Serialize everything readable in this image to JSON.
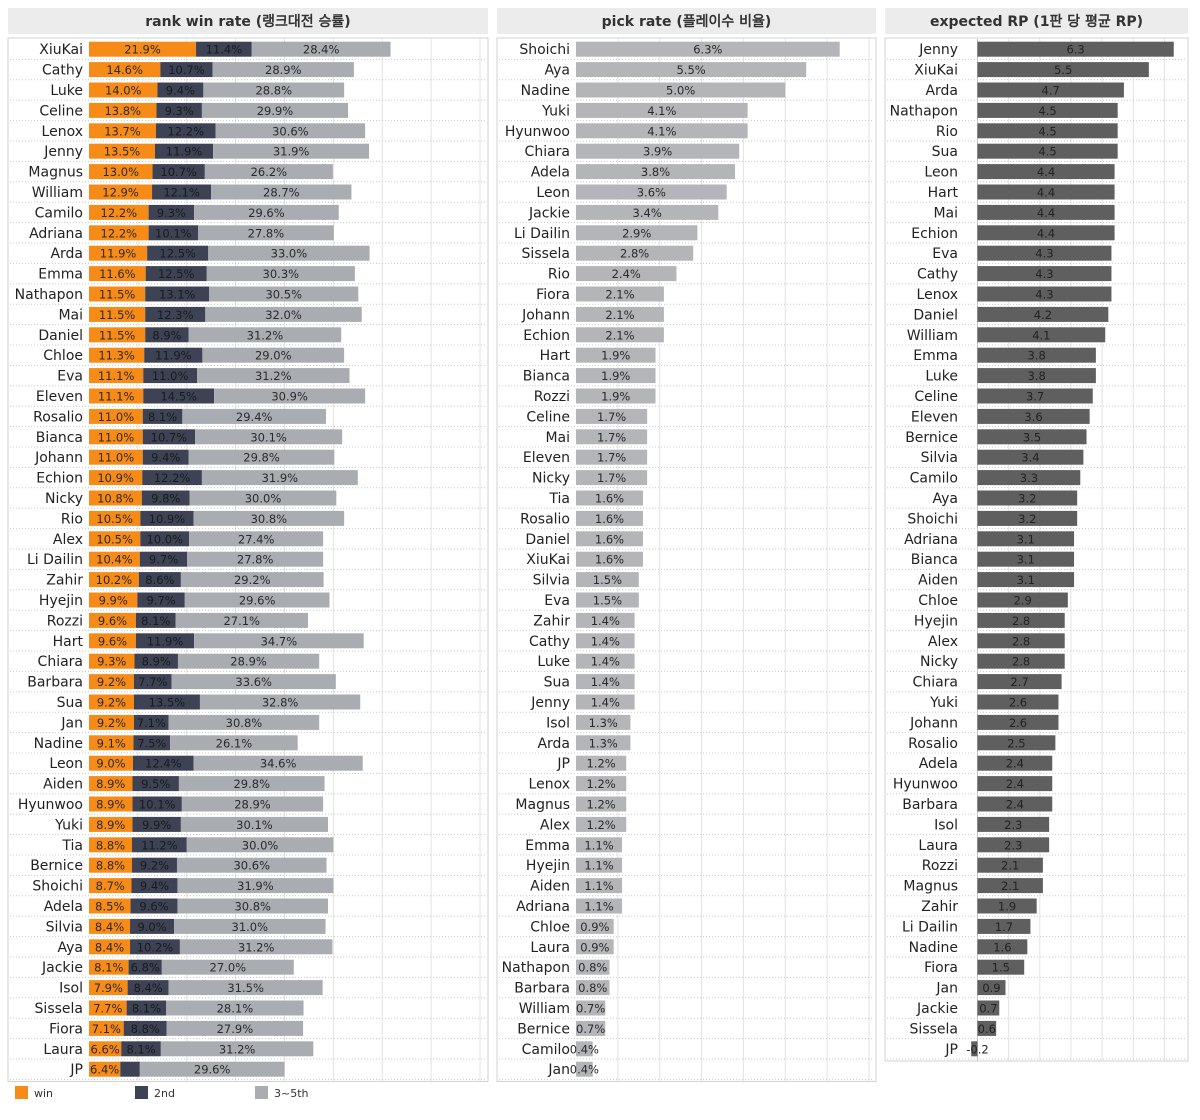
{
  "chart_data": [
    {
      "type": "bar",
      "stacked": true,
      "orientation": "horizontal",
      "title": "rank win rate (랭크대전 승률)",
      "unit": "%",
      "xlim": [
        0,
        80
      ],
      "series": [
        {
          "name": "win",
          "color": "#f78b17",
          "values": [
            21.9,
            14.6,
            14.0,
            13.8,
            13.7,
            13.5,
            13.0,
            12.9,
            12.2,
            12.2,
            11.9,
            11.6,
            11.5,
            11.5,
            11.5,
            11.3,
            11.1,
            11.1,
            11.0,
            11.0,
            11.0,
            10.9,
            10.8,
            10.5,
            10.5,
            10.4,
            10.2,
            9.9,
            9.6,
            9.6,
            9.3,
            9.2,
            9.2,
            9.2,
            9.1,
            9.0,
            8.9,
            8.9,
            8.9,
            8.8,
            8.8,
            8.7,
            8.5,
            8.4,
            8.4,
            8.1,
            7.9,
            7.7,
            7.1,
            6.6,
            6.4
          ]
        },
        {
          "name": "2nd",
          "color": "#3d4354",
          "values": [
            11.4,
            10.7,
            9.4,
            9.3,
            12.2,
            11.9,
            10.7,
            12.1,
            9.3,
            10.1,
            12.5,
            12.5,
            13.1,
            12.3,
            8.9,
            11.9,
            11.0,
            14.5,
            8.1,
            10.7,
            9.4,
            12.2,
            9.8,
            10.9,
            10.0,
            9.7,
            8.6,
            9.7,
            8.1,
            11.9,
            8.9,
            7.7,
            13.5,
            7.1,
            7.5,
            12.4,
            9.5,
            10.1,
            9.9,
            11.2,
            9.2,
            9.4,
            9.6,
            9.0,
            10.2,
            6.8,
            8.4,
            8.1,
            8.8,
            8.1,
            4.0
          ]
        },
        {
          "name": "3~5th",
          "color": "#a9adb2",
          "values": [
            28.4,
            28.9,
            28.8,
            29.9,
            30.6,
            31.9,
            26.2,
            28.7,
            29.6,
            27.8,
            33.0,
            30.3,
            30.5,
            32.0,
            31.2,
            29.0,
            31.2,
            30.9,
            29.4,
            30.1,
            29.8,
            31.9,
            30.0,
            30.8,
            27.4,
            27.8,
            29.2,
            29.6,
            27.1,
            34.7,
            28.9,
            33.6,
            32.8,
            30.8,
            26.1,
            34.6,
            29.8,
            28.9,
            30.1,
            30.0,
            30.6,
            31.9,
            30.8,
            31.0,
            31.2,
            27.0,
            31.5,
            28.1,
            27.9,
            31.2,
            29.6
          ]
        }
      ],
      "categories": [
        "XiuKai",
        "Cathy",
        "Luke",
        "Celine",
        "Lenox",
        "Jenny",
        "Magnus",
        "William",
        "Camilo",
        "Adriana",
        "Arda",
        "Emma",
        "Nathapon",
        "Mai",
        "Daniel",
        "Chloe",
        "Eva",
        "Eleven",
        "Rosalio",
        "Bianca",
        "Johann",
        "Echion",
        "Nicky",
        "Rio",
        "Alex",
        "Li Dailin",
        "Zahir",
        "Hyejin",
        "Rozzi",
        "Hart",
        "Chiara",
        "Barbara",
        "Sua",
        "Jan",
        "Nadine",
        "Leon",
        "Aiden",
        "Hyunwoo",
        "Yuki",
        "Tia",
        "Bernice",
        "Shoichi",
        "Adela",
        "Silvia",
        "Aya",
        "Jackie",
        "Isol",
        "Sissela",
        "Fiora",
        "Laura",
        "JP"
      ],
      "data_labels": {
        "win": [
          "21.9%",
          "14.6%",
          "14.0%",
          "13.8%",
          "13.7%",
          "13.5%",
          "13.0%",
          "12.9%",
          "12.2%",
          "12.2%",
          "11.9%",
          "11.6%",
          "11.5%",
          "11.5%",
          "11.5%",
          "11.3%",
          "11.1%",
          "11.1%",
          "11.0%",
          "11.0%",
          "11.0%",
          "10.9%",
          "10.8%",
          "10.5%",
          "10.5%",
          "10.4%",
          "10.2%",
          "9.9%",
          "9.6%",
          "9.6%",
          "9.3%",
          "9.2%",
          "9.2%",
          "9.2%",
          "9.1%",
          "9.0%",
          "8.9%",
          "8.9%",
          "8.9%",
          "8.8%",
          "8.8%",
          "8.7%",
          "8.5%",
          "8.4%",
          "8.4%",
          "8.1%",
          "7.9%",
          "7.7%",
          "7.1%",
          "6.6%",
          "6.4%"
        ],
        "2nd": [
          "11.4%",
          "10.7%",
          "9.4%",
          "9.3%",
          "12.2%",
          "11.9%",
          "10.7%",
          "12.1%",
          "9.3%",
          "10.1%",
          "12.5%",
          "12.5%",
          "13.1%",
          "12.3%",
          "8.9%",
          "11.9%",
          "11.0%",
          "14.5%",
          "8.1%",
          "10.7%",
          "9.4%",
          "12.2%",
          "9.8%",
          "10.9%",
          "10.0%",
          "9.7%",
          "8.6%",
          "9.7%",
          "8.1%",
          "11.9%",
          "8.9%",
          "7.7%",
          "13.5%",
          "7.1%",
          "7.5%",
          "12.4%",
          "9.5%",
          "10.1%",
          "9.9%",
          "11.2%",
          "9.2%",
          "9.4%",
          "9.6%",
          "9.0%",
          "10.2%",
          "6.8%",
          "8.4%",
          "8.1%",
          "8.8%",
          "8.1%",
          ""
        ],
        "3~5th": [
          "28.4%",
          "28.9%",
          "28.8%",
          "29.9%",
          "30.6%",
          "31.9%",
          "26.2%",
          "28.7%",
          "29.6%",
          "27.8%",
          "33.0%",
          "30.3%",
          "30.5%",
          "32.0%",
          "31.2%",
          "29.0%",
          "31.2%",
          "30.9%",
          "29.4%",
          "30.1%",
          "29.8%",
          "31.9%",
          "30.0%",
          "30.8%",
          "27.4%",
          "27.8%",
          "29.2%",
          "29.6%",
          "27.1%",
          "34.7%",
          "28.9%",
          "33.6%",
          "32.8%",
          "30.8%",
          "26.1%",
          "34.6%",
          "29.8%",
          "28.9%",
          "30.1%",
          "30.0%",
          "30.6%",
          "31.9%",
          "30.8%",
          "31.0%",
          "31.2%",
          "27.0%",
          "31.5%",
          "28.1%",
          "27.9%",
          "31.2%",
          "29.6%"
        ]
      }
    },
    {
      "type": "bar",
      "orientation": "horizontal",
      "title": "pick rate (플레이수 비율)",
      "unit": "%",
      "xlim": [
        0,
        7
      ],
      "color": "#b3b5b8",
      "categories": [
        "Shoichi",
        "Aya",
        "Nadine",
        "Yuki",
        "Hyunwoo",
        "Chiara",
        "Adela",
        "Leon",
        "Jackie",
        "Li Dailin",
        "Sissela",
        "Rio",
        "Fiora",
        "Johann",
        "Echion",
        "Hart",
        "Bianca",
        "Rozzi",
        "Celine",
        "Mai",
        "Eleven",
        "Nicky",
        "Tia",
        "Rosalio",
        "Daniel",
        "XiuKai",
        "Silvia",
        "Eva",
        "Zahir",
        "Cathy",
        "Luke",
        "Sua",
        "Jenny",
        "Isol",
        "Arda",
        "JP",
        "Lenox",
        "Magnus",
        "Alex",
        "Emma",
        "Hyejin",
        "Aiden",
        "Adriana",
        "Chloe",
        "Laura",
        "Nathapon",
        "Barbara",
        "William",
        "Bernice",
        "Camilo",
        "Jan"
      ],
      "values": [
        6.3,
        5.5,
        5.0,
        4.1,
        4.1,
        3.9,
        3.8,
        3.6,
        3.4,
        2.9,
        2.8,
        2.4,
        2.1,
        2.1,
        2.1,
        1.9,
        1.9,
        1.9,
        1.7,
        1.7,
        1.7,
        1.7,
        1.6,
        1.6,
        1.6,
        1.6,
        1.5,
        1.5,
        1.4,
        1.4,
        1.4,
        1.4,
        1.4,
        1.3,
        1.3,
        1.2,
        1.2,
        1.2,
        1.2,
        1.1,
        1.1,
        1.1,
        1.1,
        0.9,
        0.9,
        0.8,
        0.8,
        0.7,
        0.7,
        0.4,
        0.4
      ],
      "data_labels": [
        "6.3%",
        "5.5%",
        "5.0%",
        "4.1%",
        "4.1%",
        "3.9%",
        "3.8%",
        "3.6%",
        "3.4%",
        "2.9%",
        "2.8%",
        "2.4%",
        "2.1%",
        "2.1%",
        "2.1%",
        "1.9%",
        "1.9%",
        "1.9%",
        "1.7%",
        "1.7%",
        "1.7%",
        "1.7%",
        "1.6%",
        "1.6%",
        "1.6%",
        "1.6%",
        "1.5%",
        "1.5%",
        "1.4%",
        "1.4%",
        "1.4%",
        "1.4%",
        "1.4%",
        "1.3%",
        "1.3%",
        "1.2%",
        "1.2%",
        "1.2%",
        "1.2%",
        "1.1%",
        "1.1%",
        "1.1%",
        "1.1%",
        "0.9%",
        "0.9%",
        "0.8%",
        "0.8%",
        "0.7%",
        "0.7%",
        "0.4%",
        "0.4%"
      ]
    },
    {
      "type": "bar",
      "orientation": "horizontal",
      "title": "expected RP (1판 당 평균 RP)",
      "xlim": [
        -0.4,
        6.5
      ],
      "color": "#5f5f5f",
      "categories": [
        "Jenny",
        "XiuKai",
        "Arda",
        "Nathapon",
        "Rio",
        "Sua",
        "Leon",
        "Hart",
        "Mai",
        "Echion",
        "Eva",
        "Cathy",
        "Lenox",
        "Daniel",
        "William",
        "Emma",
        "Luke",
        "Celine",
        "Eleven",
        "Bernice",
        "Silvia",
        "Camilo",
        "Aya",
        "Shoichi",
        "Adriana",
        "Bianca",
        "Aiden",
        "Chloe",
        "Hyejin",
        "Alex",
        "Nicky",
        "Chiara",
        "Yuki",
        "Johann",
        "Rosalio",
        "Adela",
        "Hyunwoo",
        "Barbara",
        "Isol",
        "Laura",
        "Rozzi",
        "Magnus",
        "Zahir",
        "Li Dailin",
        "Nadine",
        "Fiora",
        "Jan",
        "Jackie",
        "Sissela",
        "JP"
      ],
      "values": [
        6.3,
        5.5,
        4.7,
        4.5,
        4.5,
        4.5,
        4.4,
        4.4,
        4.4,
        4.4,
        4.3,
        4.3,
        4.3,
        4.2,
        4.1,
        3.8,
        3.8,
        3.7,
        3.6,
        3.5,
        3.4,
        3.3,
        3.2,
        3.2,
        3.1,
        3.1,
        3.1,
        2.9,
        2.8,
        2.8,
        2.8,
        2.7,
        2.6,
        2.6,
        2.5,
        2.4,
        2.4,
        2.4,
        2.3,
        2.3,
        2.1,
        2.1,
        1.9,
        1.7,
        1.6,
        1.5,
        0.9,
        0.7,
        0.6,
        -0.2
      ],
      "data_labels": [
        "6.3",
        "5.5",
        "4.7",
        "4.5",
        "4.5",
        "4.5",
        "4.4",
        "4.4",
        "4.4",
        "4.4",
        "4.3",
        "4.3",
        "4.3",
        "4.2",
        "4.1",
        "3.8",
        "3.8",
        "3.7",
        "3.6",
        "3.5",
        "3.4",
        "3.3",
        "3.2",
        "3.2",
        "3.1",
        "3.1",
        "3.1",
        "2.9",
        "2.8",
        "2.8",
        "2.8",
        "2.7",
        "2.6",
        "2.6",
        "2.5",
        "2.4",
        "2.4",
        "2.4",
        "2.3",
        "2.3",
        "2.1",
        "2.1",
        "1.9",
        "1.7",
        "1.6",
        "1.5",
        "0.9",
        "0.7",
        "0.6",
        "-0.2"
      ]
    }
  ],
  "legend": [
    {
      "label": "win",
      "color": "#f78b17"
    },
    {
      "label": "2nd",
      "color": "#3d4354"
    },
    {
      "label": "3~5th",
      "color": "#a9adb2"
    }
  ]
}
